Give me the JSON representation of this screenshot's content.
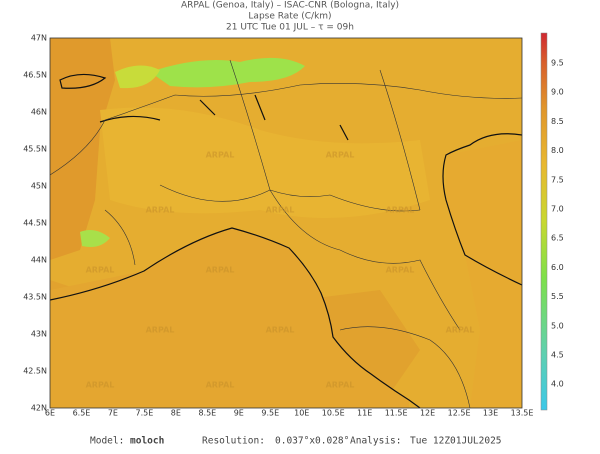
{
  "header": {
    "line1": "ARPAL (Genoa, Italy)  –  ISAC-CNR (Bologna, Italy)",
    "line2": "Lapse Rate (C/km)",
    "line3": "21 UTC Tue 01 JUL  –  τ = 09h"
  },
  "lat_labels": [
    "47N",
    "46.5N",
    "46N",
    "45.5N",
    "45N",
    "44.5N",
    "44N",
    "43.5N",
    "43N",
    "42.5N",
    "42N"
  ],
  "lon_labels": [
    "6E",
    "6.5E",
    "7E",
    "7.5E",
    "8E",
    "8.5E",
    "9E",
    "9.5E",
    "10E",
    "10.5E",
    "11E",
    "11.5E",
    "12E",
    "12.5E",
    "13E",
    "13.5E"
  ],
  "colorbar_labels": [
    "9.5",
    "9.0",
    "8.5",
    "8.0",
    "7.5",
    "7.0",
    "6.5",
    "6.0",
    "5.5",
    "5.0",
    "4.5",
    "4.0"
  ],
  "watermark": "ARPAL",
  "footer": {
    "model_label": "Model:",
    "model": "moloch",
    "resolution_label": "Resolution:",
    "resolution": "0.037°x0.028°",
    "analysis_label": "Analysis:",
    "analysis": "Tue 12Z01JUL2025"
  }
}
